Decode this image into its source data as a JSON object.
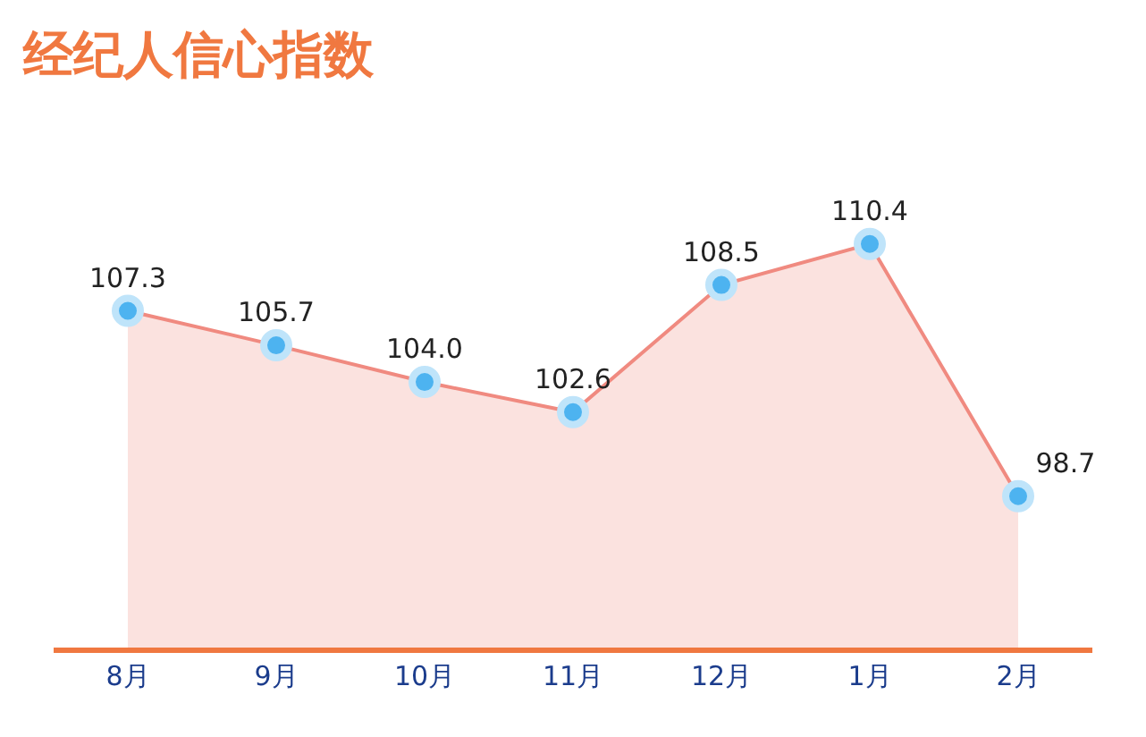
{
  "chart_data": {
    "type": "area",
    "title": "经纪人信心指数",
    "categories": [
      "8月",
      "9月",
      "10月",
      "11月",
      "12月",
      "1月",
      "2月"
    ],
    "series": [
      {
        "color": "#f08a80",
        "values": [
          107.3,
          105.7,
          104.0,
          102.6,
          108.5,
          110.4,
          98.7
        ],
        "value_labels": [
          "107.3",
          "105.7",
          "104.0",
          "102.6",
          "108.5",
          "110.4",
          "98.7"
        ],
        "colors": [
          "#4db3f0",
          "#4db3f0",
          "#4db3f0",
          "#4db3f0",
          "#4db3f0",
          "#4db3f0",
          "#4db3f0"
        ]
      }
    ],
    "marker": "circle",
    "grid": false
  }
}
